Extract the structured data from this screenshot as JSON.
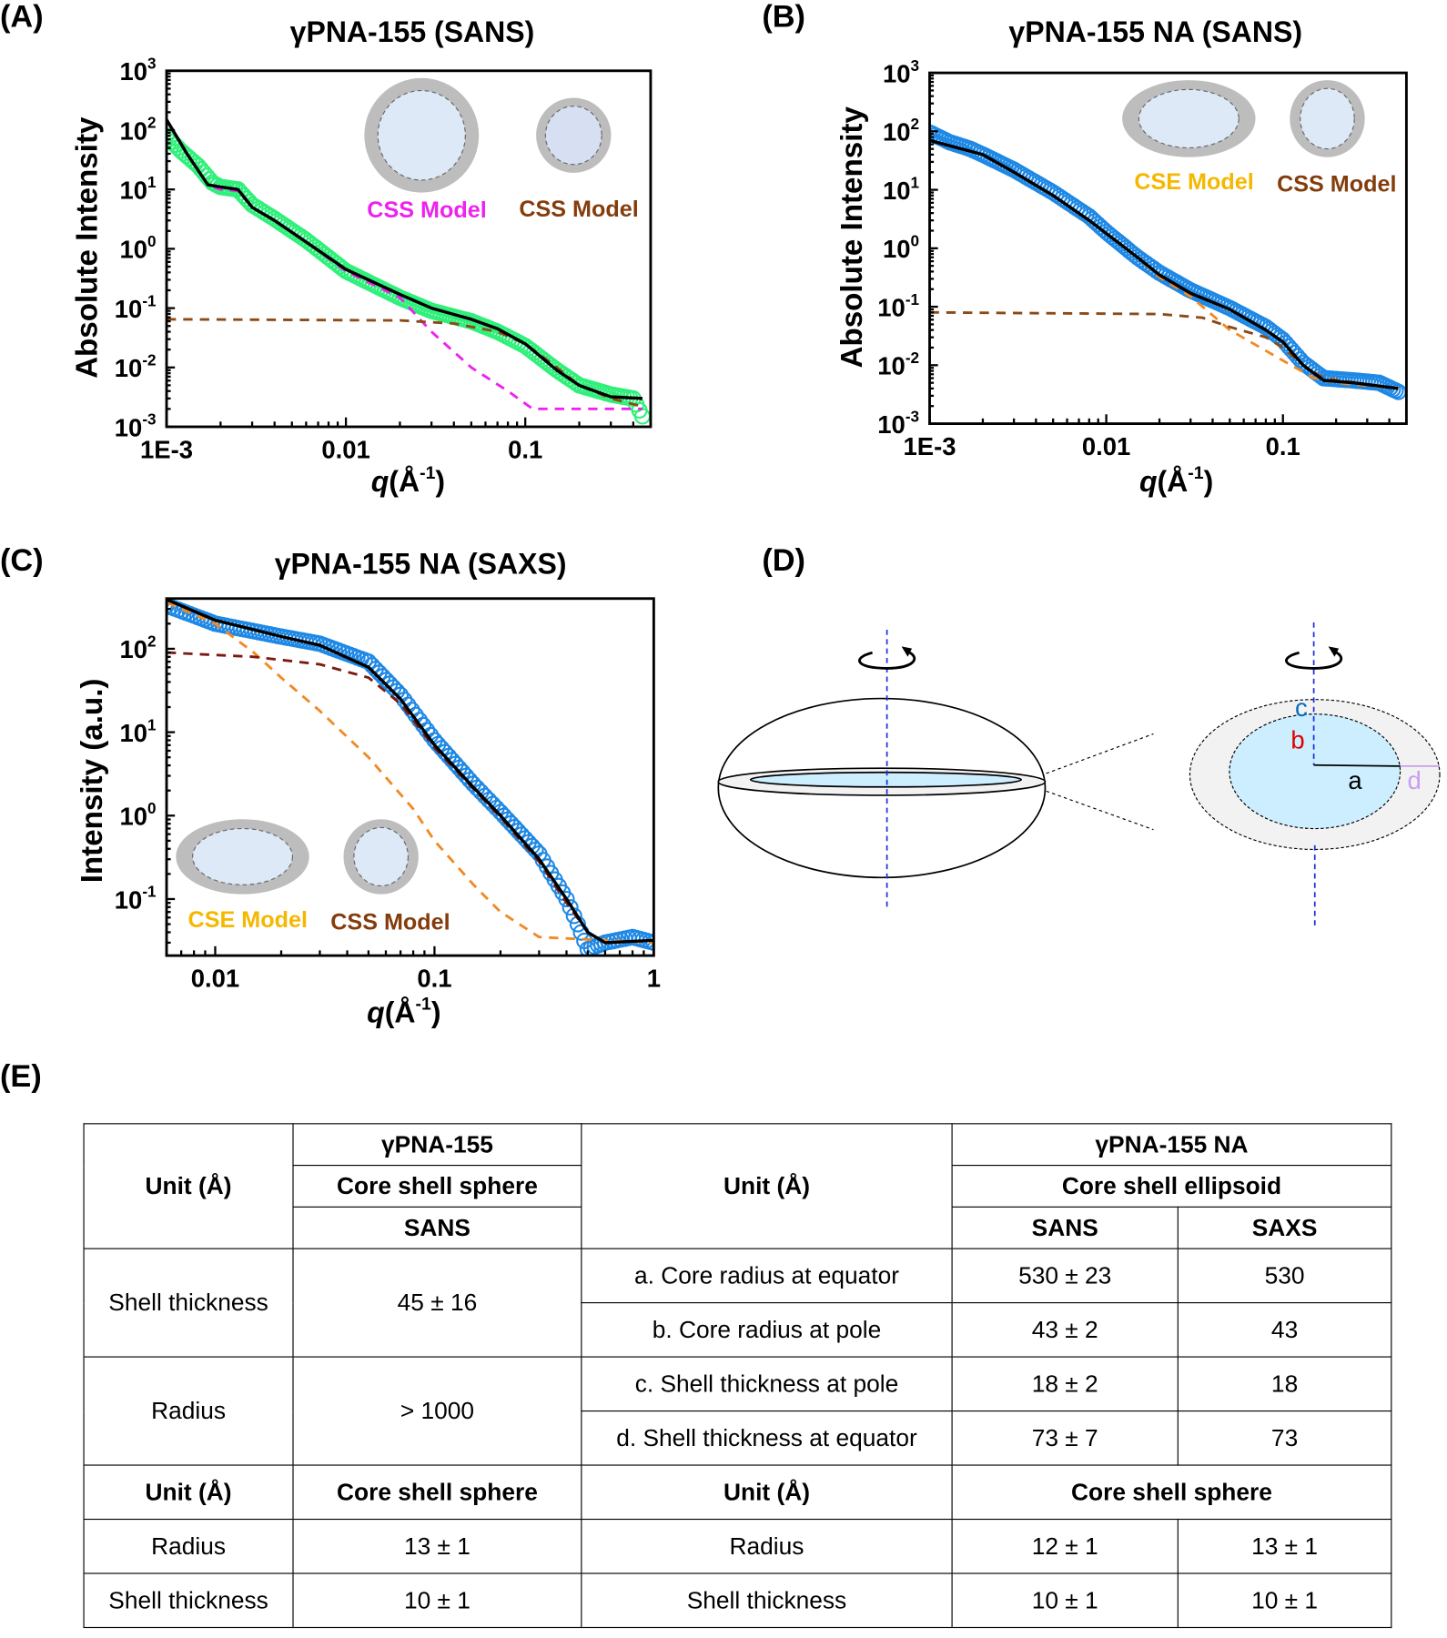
{
  "panels": {
    "a": "(A)",
    "b": "(B)",
    "c": "(C)",
    "d": "(D)",
    "e": "(E)"
  },
  "colors": {
    "green_data": "#2ef07a",
    "blue_data": "#1e88e5",
    "magenta": "#ee22ee",
    "brown": "#8b4a16",
    "orange": "#f08a24",
    "dark_red": "#7b1a10",
    "cse_label": "#f5b800",
    "css_label": "#843c0c"
  },
  "chart_data": [
    {
      "id": "A",
      "type": "line",
      "title": "γPNA-155 (SANS)",
      "xlabel": {
        "var": "q",
        "unit": "(Å",
        "exp": "-1",
        "close": ")"
      },
      "ylabel": "Absolute Intensity",
      "xscale": "log",
      "yscale": "log",
      "xlim": [
        0.001,
        0.5
      ],
      "ylim": [
        0.001,
        1000
      ],
      "xticks": [
        {
          "value": 0.001,
          "label": "1E-3"
        },
        {
          "value": 0.01,
          "label": "0.01"
        },
        {
          "value": 0.1,
          "label": "0.1"
        }
      ],
      "yticks": [
        {
          "value": 1000,
          "base": "10",
          "exp": "3"
        },
        {
          "value": 100,
          "base": "10",
          "exp": "2"
        },
        {
          "value": 10,
          "base": "10",
          "exp": "1"
        },
        {
          "value": 1,
          "base": "10",
          "exp": "0"
        },
        {
          "value": 0.1,
          "base": "10",
          "exp": "-1"
        },
        {
          "value": 0.01,
          "base": "10",
          "exp": "-2"
        },
        {
          "value": 0.001,
          "base": "10",
          "exp": "-3"
        }
      ],
      "legend": [
        {
          "label": "CSS Model",
          "color": "#ee22ee"
        },
        {
          "label": "CSS Model",
          "color": "#843c0c"
        }
      ],
      "series": [
        {
          "name": "data",
          "style": "markers",
          "color": "#2ef07a",
          "points": [
            [
              0.001,
              80
            ],
            [
              0.0012,
              45
            ],
            [
              0.0015,
              25
            ],
            [
              0.0018,
              13
            ],
            [
              0.002,
              11
            ],
            [
              0.0025,
              10
            ],
            [
              0.003,
              5.5
            ],
            [
              0.004,
              3.2
            ],
            [
              0.006,
              1.4
            ],
            [
              0.01,
              0.42
            ],
            [
              0.02,
              0.15
            ],
            [
              0.03,
              0.09
            ],
            [
              0.05,
              0.06
            ],
            [
              0.07,
              0.04
            ],
            [
              0.1,
              0.023
            ],
            [
              0.15,
              0.009
            ],
            [
              0.2,
              0.005
            ],
            [
              0.3,
              0.0035
            ],
            [
              0.4,
              0.003
            ],
            [
              0.45,
              0.0015
            ]
          ]
        },
        {
          "name": "fit",
          "style": "line",
          "color": "#000000",
          "points": [
            [
              0.001,
              150
            ],
            [
              0.0013,
              40
            ],
            [
              0.0017,
              12
            ],
            [
              0.002,
              11
            ],
            [
              0.0025,
              10
            ],
            [
              0.003,
              5
            ],
            [
              0.004,
              3
            ],
            [
              0.006,
              1.3
            ],
            [
              0.01,
              0.45
            ],
            [
              0.02,
              0.17
            ],
            [
              0.03,
              0.1
            ],
            [
              0.05,
              0.065
            ],
            [
              0.07,
              0.045
            ],
            [
              0.1,
              0.025
            ],
            [
              0.15,
              0.009
            ],
            [
              0.2,
              0.005
            ],
            [
              0.3,
              0.0032
            ],
            [
              0.45,
              0.003
            ]
          ]
        },
        {
          "name": "CSS model (large)",
          "style": "dashed",
          "color": "#ee22ee",
          "points": [
            [
              0.001,
              150
            ],
            [
              0.0013,
              40
            ],
            [
              0.0017,
              12
            ],
            [
              0.002,
              10
            ],
            [
              0.0025,
              9.5
            ],
            [
              0.003,
              5
            ],
            [
              0.004,
              3
            ],
            [
              0.006,
              1.3
            ],
            [
              0.01,
              0.42
            ],
            [
              0.02,
              0.15
            ],
            [
              0.03,
              0.04
            ],
            [
              0.05,
              0.01
            ],
            [
              0.08,
              0.004
            ],
            [
              0.11,
              0.002
            ],
            [
              0.45,
              0.002
            ]
          ]
        },
        {
          "name": "CSS model (small)",
          "style": "dashed",
          "color": "#8b4a16",
          "points": [
            [
              0.001,
              0.065
            ],
            [
              0.02,
              0.062
            ],
            [
              0.04,
              0.055
            ],
            [
              0.07,
              0.04
            ],
            [
              0.1,
              0.025
            ],
            [
              0.15,
              0.01
            ],
            [
              0.2,
              0.005
            ],
            [
              0.3,
              0.003
            ],
            [
              0.45,
              0.0022
            ]
          ]
        }
      ]
    },
    {
      "id": "B",
      "type": "line",
      "title": "γPNA-155 NA (SANS)",
      "xlabel": {
        "var": "q",
        "unit": "(Å",
        "exp": "-1",
        "close": ")"
      },
      "ylabel": "Absolute Intensity",
      "xscale": "log",
      "yscale": "log",
      "xlim": [
        0.001,
        0.5
      ],
      "ylim": [
        0.001,
        1000
      ],
      "xticks": [
        {
          "value": 0.001,
          "label": "1E-3"
        },
        {
          "value": 0.01,
          "label": "0.01"
        },
        {
          "value": 0.1,
          "label": "0.1"
        }
      ],
      "yticks": [
        {
          "value": 1000,
          "base": "10",
          "exp": "3"
        },
        {
          "value": 100,
          "base": "10",
          "exp": "2"
        },
        {
          "value": 10,
          "base": "10",
          "exp": "1"
        },
        {
          "value": 1,
          "base": "10",
          "exp": "0"
        },
        {
          "value": 0.1,
          "base": "10",
          "exp": "-1"
        },
        {
          "value": 0.01,
          "base": "10",
          "exp": "-2"
        },
        {
          "value": 0.001,
          "base": "10",
          "exp": "-3"
        }
      ],
      "legend": [
        {
          "label": "CSE Model",
          "color": "#f5b800"
        },
        {
          "label": "CSS Model",
          "color": "#843c0c"
        }
      ],
      "series": [
        {
          "name": "data",
          "style": "markers",
          "color": "#1e88e5",
          "points": [
            [
              0.001,
              95
            ],
            [
              0.0013,
              65
            ],
            [
              0.0017,
              50
            ],
            [
              0.002,
              40
            ],
            [
              0.003,
              22
            ],
            [
              0.005,
              9
            ],
            [
              0.008,
              3.5
            ],
            [
              0.01,
              1.9
            ],
            [
              0.015,
              0.7
            ],
            [
              0.02,
              0.38
            ],
            [
              0.03,
              0.19
            ],
            [
              0.05,
              0.095
            ],
            [
              0.08,
              0.045
            ],
            [
              0.1,
              0.027
            ],
            [
              0.13,
              0.011
            ],
            [
              0.17,
              0.006
            ],
            [
              0.25,
              0.0055
            ],
            [
              0.35,
              0.005
            ],
            [
              0.45,
              0.0035
            ]
          ]
        },
        {
          "name": "fit",
          "style": "line",
          "color": "#000000",
          "points": [
            [
              0.001,
              70
            ],
            [
              0.002,
              40
            ],
            [
              0.003,
              20
            ],
            [
              0.005,
              8
            ],
            [
              0.008,
              3
            ],
            [
              0.01,
              1.8
            ],
            [
              0.015,
              0.7
            ],
            [
              0.02,
              0.35
            ],
            [
              0.03,
              0.17
            ],
            [
              0.05,
              0.09
            ],
            [
              0.08,
              0.04
            ],
            [
              0.1,
              0.025
            ],
            [
              0.13,
              0.01
            ],
            [
              0.17,
              0.0055
            ],
            [
              0.25,
              0.005
            ],
            [
              0.45,
              0.004
            ]
          ]
        },
        {
          "name": "CSE model",
          "style": "dashed",
          "color": "#f08a24",
          "points": [
            [
              0.001,
              70
            ],
            [
              0.002,
              40
            ],
            [
              0.003,
              20
            ],
            [
              0.005,
              8
            ],
            [
              0.008,
              3
            ],
            [
              0.01,
              1.8
            ],
            [
              0.015,
              0.7
            ],
            [
              0.02,
              0.32
            ],
            [
              0.03,
              0.15
            ],
            [
              0.05,
              0.04
            ],
            [
              0.1,
              0.012
            ],
            [
              0.15,
              0.006
            ],
            [
              0.2,
              0.005
            ],
            [
              0.45,
              0.004
            ]
          ]
        },
        {
          "name": "CSS model",
          "style": "dashed",
          "color": "#8b4a16",
          "points": [
            [
              0.001,
              0.08
            ],
            [
              0.02,
              0.075
            ],
            [
              0.035,
              0.065
            ],
            [
              0.05,
              0.045
            ],
            [
              0.08,
              0.03
            ],
            [
              0.1,
              0.02
            ],
            [
              0.13,
              0.01
            ],
            [
              0.17,
              0.006
            ],
            [
              0.45,
              0.004
            ]
          ]
        }
      ]
    },
    {
      "id": "C",
      "type": "line",
      "title": "γPNA-155 NA (SAXS)",
      "xlabel": {
        "var": "q",
        "unit": "(Å",
        "exp": "-1",
        "close": ")"
      },
      "ylabel": "Intensity (a.u.)",
      "xscale": "log",
      "yscale": "log",
      "xlim": [
        0.006,
        1
      ],
      "ylim": [
        0.021,
        400
      ],
      "xticks": [
        {
          "value": 0.01,
          "label": "0.01"
        },
        {
          "value": 0.1,
          "label": "0.1"
        },
        {
          "value": 1,
          "label": "1"
        }
      ],
      "yticks": [
        {
          "value": 100,
          "base": "10",
          "exp": "2"
        },
        {
          "value": 10,
          "base": "10",
          "exp": "1"
        },
        {
          "value": 1,
          "base": "10",
          "exp": "0"
        },
        {
          "value": 0.1,
          "base": "10",
          "exp": "-1"
        }
      ],
      "legend": [
        {
          "label": "CSE Model",
          "color": "#f5b800"
        },
        {
          "label": "CSS Model",
          "color": "#843c0c"
        }
      ],
      "series": [
        {
          "name": "data",
          "style": "markers",
          "color": "#1e88e5",
          "points": [
            [
              0.006,
              330
            ],
            [
              0.008,
              250
            ],
            [
              0.01,
              200
            ],
            [
              0.02,
              140
            ],
            [
              0.03,
              115
            ],
            [
              0.05,
              70
            ],
            [
              0.07,
              28
            ],
            [
              0.1,
              8
            ],
            [
              0.15,
              2.4
            ],
            [
              0.2,
              1.1
            ],
            [
              0.3,
              0.35
            ],
            [
              0.4,
              0.1
            ],
            [
              0.45,
              0.05
            ],
            [
              0.5,
              0.025
            ],
            [
              0.6,
              0.03
            ],
            [
              0.8,
              0.035
            ],
            [
              1,
              0.03
            ]
          ]
        },
        {
          "name": "fit",
          "style": "line",
          "color": "#000000",
          "points": [
            [
              0.006,
              390
            ],
            [
              0.01,
              220
            ],
            [
              0.02,
              140
            ],
            [
              0.03,
              110
            ],
            [
              0.05,
              60
            ],
            [
              0.07,
              25
            ],
            [
              0.1,
              7
            ],
            [
              0.15,
              2.2
            ],
            [
              0.2,
              1.0
            ],
            [
              0.3,
              0.3
            ],
            [
              0.4,
              0.1
            ],
            [
              0.5,
              0.04
            ],
            [
              0.6,
              0.03
            ],
            [
              1,
              0.032
            ]
          ]
        },
        {
          "name": "CSE model",
          "style": "dashed",
          "color": "#f08a24",
          "points": [
            [
              0.006,
              360
            ],
            [
              0.01,
              200
            ],
            [
              0.015,
              90
            ],
            [
              0.02,
              45
            ],
            [
              0.03,
              18
            ],
            [
              0.05,
              5
            ],
            [
              0.08,
              1.2
            ],
            [
              0.1,
              0.5
            ],
            [
              0.15,
              0.15
            ],
            [
              0.2,
              0.07
            ],
            [
              0.3,
              0.035
            ],
            [
              1,
              0.03
            ]
          ]
        },
        {
          "name": "CSS model",
          "style": "dashed",
          "color": "#7b1a10",
          "points": [
            [
              0.006,
              90
            ],
            [
              0.015,
              80
            ],
            [
              0.03,
              65
            ],
            [
              0.05,
              45
            ],
            [
              0.07,
              22
            ],
            [
              0.1,
              6.5
            ],
            [
              0.15,
              2.1
            ],
            [
              0.2,
              0.95
            ],
            [
              0.3,
              0.28
            ],
            [
              0.4,
              0.09
            ],
            [
              0.5,
              0.04
            ],
            [
              0.6,
              0.03
            ],
            [
              1,
              0.032
            ]
          ]
        }
      ]
    }
  ],
  "diagram": {
    "labels": {
      "a": "a",
      "b": "b",
      "c": "c",
      "d": "d"
    }
  },
  "table": {
    "header": {
      "unit": "Unit (Å)",
      "left_sample": "γPNA-155",
      "left_model": "Core shell sphere",
      "left_method": "SANS",
      "right_sample": "γPNA-155 NA",
      "right_model": "Core shell ellipsoid",
      "right_method_1": "SANS",
      "right_method_2": "SAXS"
    },
    "rows": [
      {
        "left_param": "Shell thickness",
        "left_value": "45 ± 16",
        "right_param": "a. Core radius at equator",
        "sans": "530 ± 23",
        "saxs": "530"
      },
      {
        "right_param": "b. Core radius at pole",
        "sans": "43 ± 2",
        "saxs": "43"
      },
      {
        "left_param": "Radius",
        "left_value": "> 1000",
        "right_param": "c. Shell thickness at pole",
        "sans": "18 ± 2",
        "saxs": "18"
      },
      {
        "right_param": "d. Shell thickness at equator",
        "sans": "73 ± 7",
        "saxs": "73"
      }
    ],
    "subheader": {
      "unit_left": "Unit (Å)",
      "model_left": "Core shell sphere",
      "unit_right": "Unit (Å)",
      "model_right": "Core shell sphere"
    },
    "rows2": [
      {
        "left_param": "Radius",
        "left_value": "13 ± 1",
        "right_param": "Radius",
        "sans": "12 ± 1",
        "saxs": "13 ± 1"
      },
      {
        "left_param": "Shell thickness",
        "left_value": "10 ± 1",
        "right_param": "Shell thickness",
        "sans": "10 ± 1",
        "saxs": "10 ± 1"
      }
    ]
  }
}
